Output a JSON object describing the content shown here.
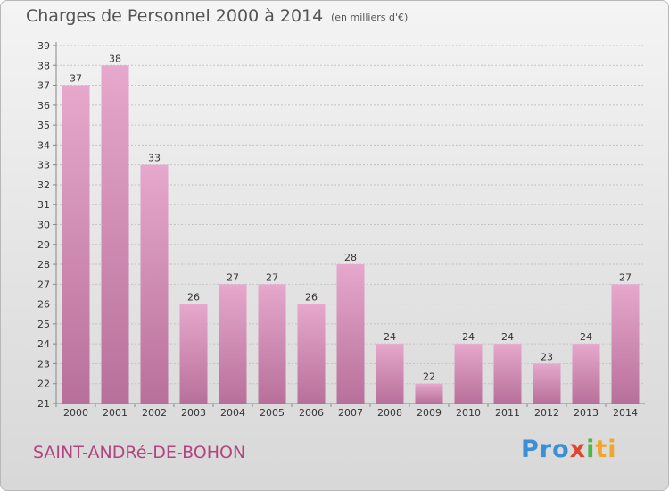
{
  "title": "Charges de Personnel 2000 à 2014",
  "subtitle": "(en milliers d'€)",
  "commune": "SAINT-ANDRé-DE-BOHON",
  "logo": {
    "p1": "Pro",
    "p2": "x",
    "p3": "i",
    "p4": "ti"
  },
  "colors": {
    "bar_light": "#e6a8cc",
    "bar_dark": "#b8709a",
    "commune_text": "#b2457f"
  },
  "chart_data": {
    "type": "bar",
    "categories": [
      "2000",
      "2001",
      "2002",
      "2003",
      "2004",
      "2005",
      "2006",
      "2007",
      "2008",
      "2009",
      "2010",
      "2011",
      "2012",
      "2013",
      "2014"
    ],
    "values": [
      37,
      38,
      33,
      26,
      27,
      27,
      26,
      28,
      24,
      22,
      24,
      24,
      23,
      24,
      27
    ],
    "title": "Charges de Personnel 2000 à 2014",
    "subtitle": "(en milliers d'€)",
    "ylim": [
      21,
      39
    ],
    "yticks": [
      21,
      22,
      23,
      24,
      25,
      26,
      27,
      28,
      29,
      30,
      31,
      32,
      33,
      34,
      35,
      36,
      37,
      38,
      39
    ],
    "grid": true,
    "legend": "none"
  }
}
